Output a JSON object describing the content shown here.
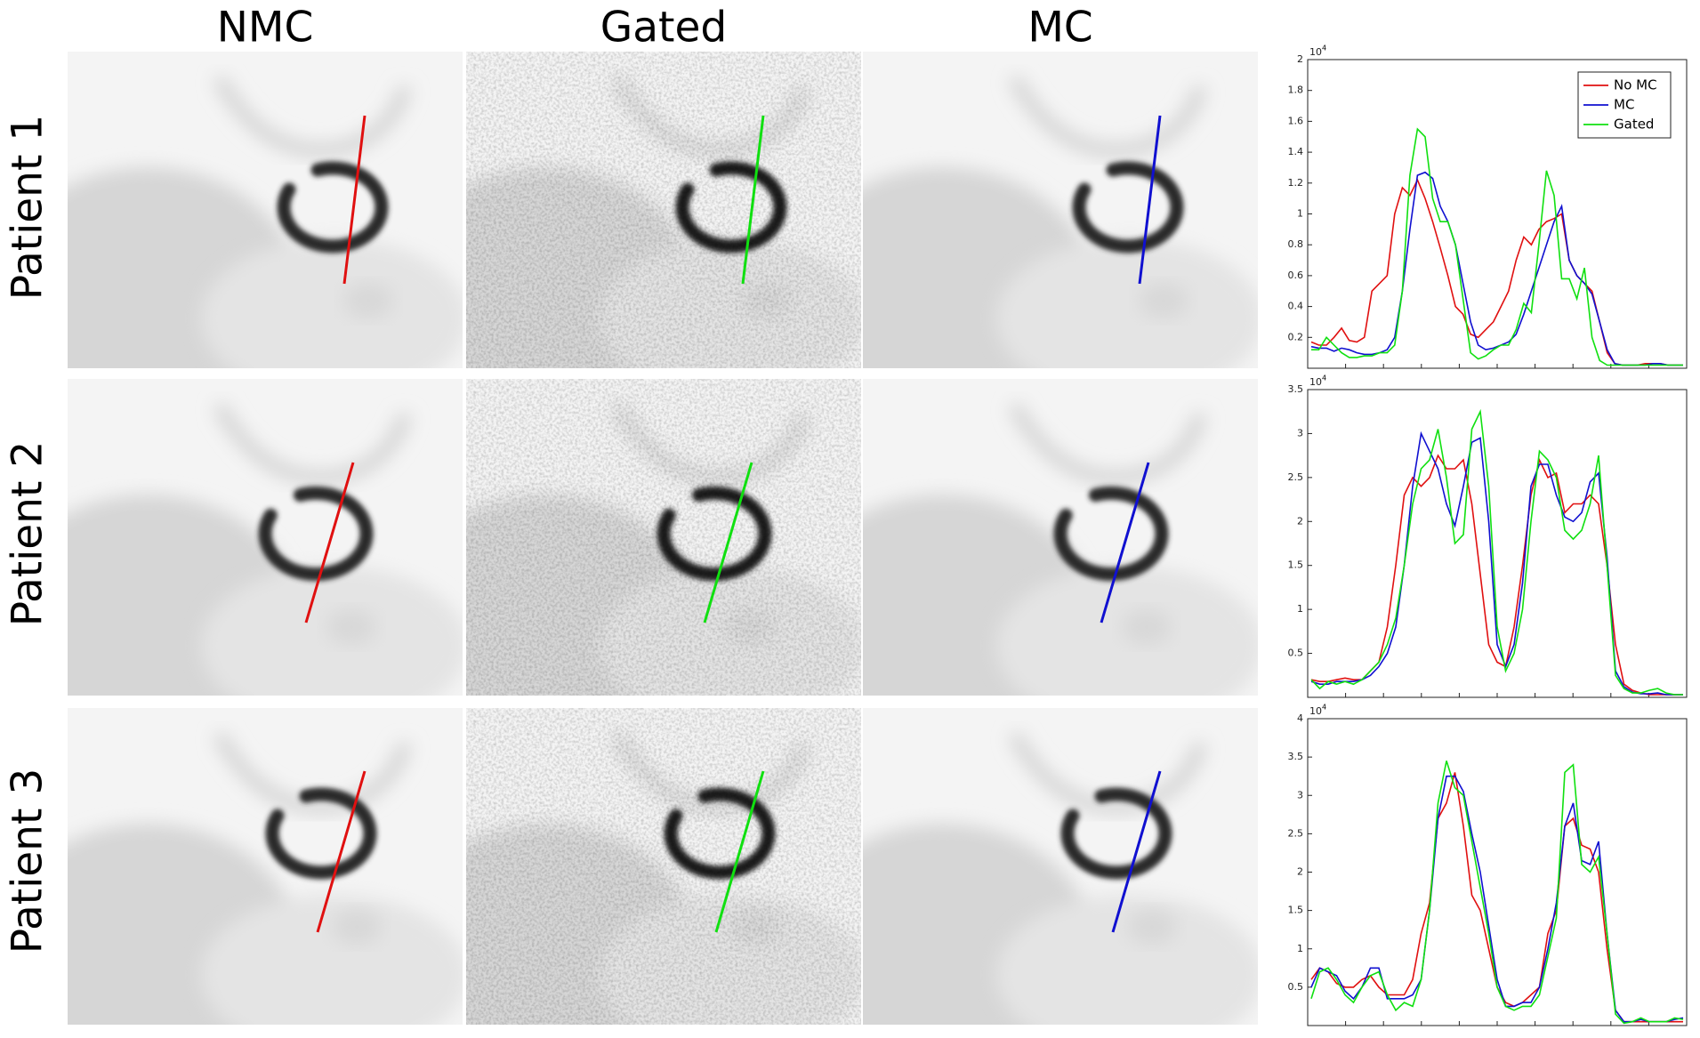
{
  "figure": {
    "columns": [
      "NMC",
      "Gated",
      "MC"
    ],
    "rows": [
      "Patient 1",
      "Patient 2",
      "Patient 3"
    ]
  },
  "chart_data": [
    {
      "type": "line",
      "multiplier": {
        "base": "10",
        "exponent": "4"
      },
      "ylim": [
        0,
        2
      ],
      "yticks": [
        0.2,
        0.4,
        0.6,
        0.8,
        1,
        1.2,
        1.4,
        1.6,
        1.8,
        2
      ],
      "legend": "upper right",
      "series": [
        {
          "name": "No MC",
          "color": "#e01010",
          "values": [
            0.17,
            0.15,
            0.15,
            0.2,
            0.26,
            0.18,
            0.17,
            0.2,
            0.5,
            0.55,
            0.6,
            1.0,
            1.17,
            1.12,
            1.22,
            1.1,
            0.95,
            0.78,
            0.6,
            0.4,
            0.35,
            0.22,
            0.2,
            0.25,
            0.3,
            0.4,
            0.5,
            0.7,
            0.85,
            0.8,
            0.9,
            0.95,
            0.97,
            1.0,
            0.7,
            0.6,
            0.55,
            0.5,
            0.3,
            0.1,
            0.03,
            0.02,
            0.02,
            0.02,
            0.03,
            0.03,
            0.03,
            0.02,
            0.02,
            0.02
          ]
        },
        {
          "name": "MC",
          "color": "#1010d0",
          "values": [
            0.14,
            0.13,
            0.13,
            0.11,
            0.13,
            0.12,
            0.1,
            0.09,
            0.09,
            0.1,
            0.12,
            0.2,
            0.5,
            0.9,
            1.25,
            1.27,
            1.23,
            1.05,
            0.95,
            0.8,
            0.55,
            0.3,
            0.15,
            0.12,
            0.13,
            0.15,
            0.17,
            0.22,
            0.35,
            0.5,
            0.65,
            0.8,
            0.95,
            1.05,
            0.7,
            0.6,
            0.55,
            0.48,
            0.3,
            0.12,
            0.03,
            0.02,
            0.02,
            0.02,
            0.02,
            0.03,
            0.03,
            0.02,
            0.02,
            0.02
          ]
        },
        {
          "name": "Gated",
          "color": "#10e010",
          "values": [
            0.12,
            0.12,
            0.2,
            0.15,
            0.1,
            0.07,
            0.07,
            0.08,
            0.08,
            0.1,
            0.1,
            0.15,
            0.5,
            1.25,
            1.55,
            1.5,
            1.1,
            0.95,
            0.95,
            0.8,
            0.45,
            0.1,
            0.06,
            0.08,
            0.12,
            0.15,
            0.15,
            0.25,
            0.42,
            0.36,
            0.8,
            1.28,
            1.12,
            0.58,
            0.58,
            0.45,
            0.65,
            0.2,
            0.05,
            0.02,
            0.02,
            0.02,
            0.02,
            0.02,
            0.02,
            0.02,
            0.02,
            0.02,
            0.02,
            0.02
          ]
        }
      ]
    },
    {
      "type": "line",
      "multiplier": {
        "base": "10",
        "exponent": "4"
      },
      "ylim": [
        0,
        3.5
      ],
      "yticks": [
        0.5,
        1,
        1.5,
        2,
        2.5,
        3,
        3.5
      ],
      "series": [
        {
          "color": "#e01010",
          "values": [
            0.2,
            0.18,
            0.18,
            0.2,
            0.22,
            0.2,
            0.2,
            0.3,
            0.4,
            0.8,
            1.5,
            2.3,
            2.5,
            2.4,
            2.5,
            2.75,
            2.6,
            2.6,
            2.7,
            2.2,
            1.4,
            0.6,
            0.4,
            0.35,
            0.8,
            1.5,
            2.3,
            2.7,
            2.5,
            2.55,
            2.1,
            2.2,
            2.2,
            2.3,
            2.2,
            1.5,
            0.6,
            0.15,
            0.08,
            0.05,
            0.03,
            0.03,
            0.03,
            0.03,
            0.03
          ]
        },
        {
          "color": "#1010d0",
          "values": [
            0.18,
            0.15,
            0.15,
            0.18,
            0.18,
            0.18,
            0.2,
            0.25,
            0.35,
            0.5,
            0.8,
            1.5,
            2.4,
            3.0,
            2.8,
            2.6,
            2.2,
            1.95,
            2.4,
            2.9,
            2.95,
            2.0,
            0.6,
            0.35,
            0.6,
            1.3,
            2.4,
            2.65,
            2.65,
            2.3,
            2.05,
            2.0,
            2.1,
            2.45,
            2.55,
            1.6,
            0.3,
            0.12,
            0.06,
            0.04,
            0.04,
            0.05,
            0.03,
            0.03,
            0.03
          ]
        },
        {
          "color": "#10e010",
          "values": [
            0.2,
            0.1,
            0.18,
            0.15,
            0.18,
            0.15,
            0.2,
            0.3,
            0.4,
            0.6,
            0.9,
            1.5,
            2.2,
            2.6,
            2.7,
            3.05,
            2.5,
            1.75,
            1.85,
            3.05,
            3.25,
            2.4,
            0.8,
            0.3,
            0.5,
            1.0,
            2.0,
            2.8,
            2.7,
            2.5,
            1.9,
            1.8,
            1.9,
            2.2,
            2.75,
            1.5,
            0.25,
            0.1,
            0.05,
            0.05,
            0.08,
            0.1,
            0.05,
            0.03,
            0.03
          ]
        }
      ]
    },
    {
      "type": "line",
      "multiplier": {
        "base": "10",
        "exponent": "4"
      },
      "ylim": [
        0,
        4
      ],
      "yticks": [
        0.5,
        1,
        1.5,
        2,
        2.5,
        3,
        3.5,
        4
      ],
      "series": [
        {
          "color": "#e01010",
          "values": [
            0.6,
            0.75,
            0.7,
            0.55,
            0.5,
            0.5,
            0.6,
            0.65,
            0.5,
            0.4,
            0.4,
            0.4,
            0.6,
            1.2,
            1.6,
            2.7,
            2.9,
            3.3,
            2.6,
            1.7,
            1.5,
            1.0,
            0.5,
            0.3,
            0.25,
            0.3,
            0.4,
            0.5,
            1.2,
            1.5,
            2.6,
            2.7,
            2.35,
            2.3,
            2.0,
            1.0,
            0.2,
            0.05,
            0.05,
            0.05,
            0.05,
            0.05,
            0.05,
            0.05,
            0.05
          ]
        },
        {
          "color": "#1010d0",
          "values": [
            0.5,
            0.75,
            0.7,
            0.65,
            0.45,
            0.35,
            0.5,
            0.75,
            0.75,
            0.35,
            0.35,
            0.35,
            0.4,
            0.6,
            1.5,
            2.7,
            3.25,
            3.25,
            3.05,
            2.5,
            2.0,
            1.3,
            0.6,
            0.25,
            0.25,
            0.3,
            0.3,
            0.5,
            1.0,
            1.6,
            2.6,
            2.9,
            2.15,
            2.1,
            2.4,
            1.2,
            0.2,
            0.05,
            0.05,
            0.08,
            0.05,
            0.05,
            0.05,
            0.08,
            0.1
          ]
        },
        {
          "color": "#10e010",
          "values": [
            0.35,
            0.7,
            0.75,
            0.6,
            0.4,
            0.3,
            0.5,
            0.65,
            0.7,
            0.4,
            0.2,
            0.3,
            0.25,
            0.6,
            1.5,
            2.9,
            3.45,
            3.1,
            3.0,
            2.4,
            1.8,
            1.2,
            0.5,
            0.25,
            0.2,
            0.25,
            0.25,
            0.4,
            0.9,
            1.4,
            3.3,
            3.4,
            2.1,
            2.0,
            2.2,
            1.2,
            0.15,
            0.03,
            0.05,
            0.1,
            0.05,
            0.05,
            0.05,
            0.1,
            0.08
          ]
        }
      ]
    }
  ]
}
